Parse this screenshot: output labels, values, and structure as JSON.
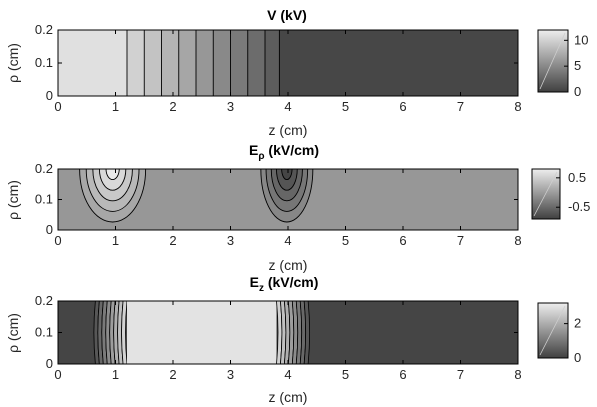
{
  "chart_data": [
    {
      "type": "heatmap",
      "title": "V (kV)",
      "xlabel": "z (cm)",
      "ylabel": "ρ (cm)",
      "xlim": [
        0,
        8
      ],
      "ylim": [
        0,
        0.2
      ],
      "xticks": [
        "0",
        "1",
        "2",
        "3",
        "4",
        "5",
        "6",
        "7",
        "8"
      ],
      "yticks": [
        "0",
        "0.1",
        "0.2"
      ],
      "colorbar": {
        "range": [
          0,
          12
        ],
        "ticks": [
          "0",
          "5",
          "10"
        ]
      },
      "z_breaks": [
        1.2,
        1.5,
        1.8,
        2.1,
        2.4,
        2.7,
        3.0,
        3.3,
        3.6,
        3.85
      ],
      "levels": [
        11.0,
        10.0,
        9.0,
        8.0,
        7.0,
        6.0,
        5.0,
        4.0,
        3.0,
        2.0,
        0.5
      ]
    },
    {
      "type": "heatmap",
      "title": "E",
      "title_subscript": "ρ",
      "title_unit": " (kV/cm)",
      "xlabel": "z (cm)",
      "ylabel": "ρ (cm)",
      "xlim": [
        0,
        8
      ],
      "ylim": [
        0,
        0.2
      ],
      "xticks": [
        "0",
        "1",
        "2",
        "3",
        "4",
        "5",
        "6",
        "7",
        "8"
      ],
      "yticks": [
        "0",
        "0.1",
        "0.2"
      ],
      "colorbar": {
        "range": [
          -0.9,
          0.8
        ],
        "ticks": [
          "0.5",
          "-0.5"
        ]
      },
      "background_value": -0.05,
      "features": [
        {
          "z_center": 0.95,
          "sign": 1,
          "peak": 0.75
        },
        {
          "z_center": 3.98,
          "sign": -1,
          "peak": -0.85
        }
      ]
    },
    {
      "type": "heatmap",
      "title": "E",
      "title_subscript": "z",
      "title_unit": " (kV/cm)",
      "xlabel": "z (cm)",
      "ylabel": "ρ (cm)",
      "xlim": [
        0,
        8
      ],
      "ylim": [
        0,
        0.2
      ],
      "xticks": [
        "0",
        "1",
        "2",
        "3",
        "4",
        "5",
        "6",
        "7",
        "8"
      ],
      "yticks": [
        "0",
        "0.1",
        "0.2"
      ],
      "colorbar": {
        "range": [
          0,
          3.2
        ],
        "ticks": [
          "2",
          "0"
        ]
      },
      "plateau_value": 3.0,
      "low_value": 0.1,
      "ramp_up": [
        0.65,
        1.2
      ],
      "ramp_down": [
        3.8,
        4.35
      ]
    }
  ],
  "colors": {
    "dark": "#404040",
    "light": "#eeeeee",
    "frame": "#000000"
  }
}
